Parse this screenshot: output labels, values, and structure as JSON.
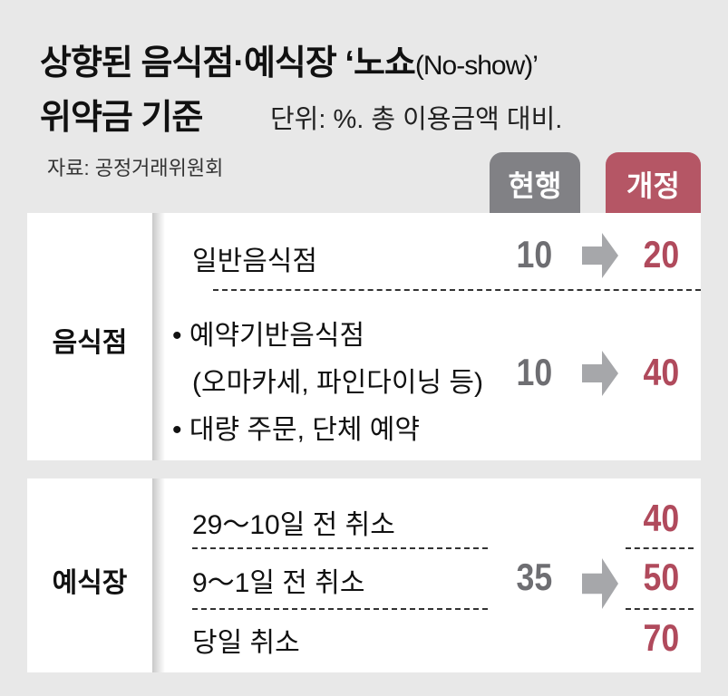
{
  "title": {
    "line1_main": "상향된 음식점·예식장 ‘노쇼",
    "line1_small": "(No-show)’",
    "line2": "위약금 기준",
    "unit": "단위: %. 총 이용금액 대비."
  },
  "source": "자료: 공정거래위원회",
  "columns": {
    "current": "현행",
    "revised": "개정"
  },
  "colors": {
    "current": "#818185",
    "revised": "#b55665",
    "background": "#e8e8e8"
  },
  "restaurant": {
    "category": "음식점",
    "rows": [
      {
        "label": "일반음식점",
        "current": "10",
        "revised": "20"
      },
      {
        "label_lines": [
          "• 예약기반음식점",
          "(오마카세, 파인다이닝 등)",
          "• 대량 주문, 단체 예약"
        ],
        "current": "10",
        "revised": "40"
      }
    ]
  },
  "wedding": {
    "category": "예식장",
    "current": "35",
    "rows": [
      {
        "label": "29～10일 전 취소",
        "revised": "40"
      },
      {
        "label": "9～1일 전 취소",
        "revised": "50"
      },
      {
        "label": "당일 취소",
        "revised": "70"
      }
    ]
  }
}
